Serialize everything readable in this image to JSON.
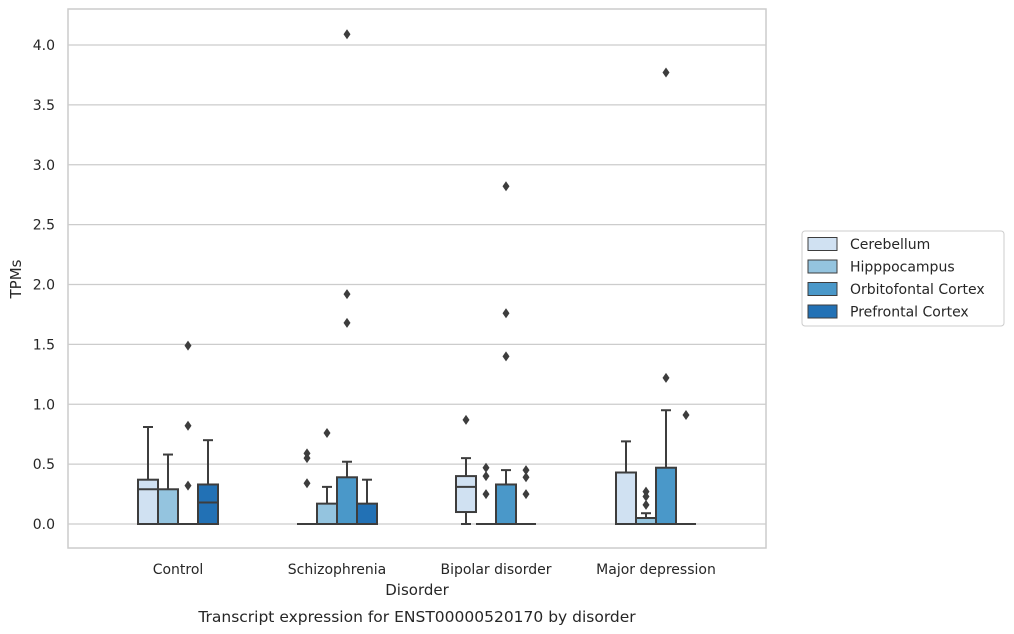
{
  "chart_data": {
    "type": "box",
    "title": "",
    "caption": "Transcript expression for ENST00000520170 by disorder",
    "xlabel": "Disorder",
    "ylabel": "TPMs",
    "ylim": [
      -0.2,
      4.3
    ],
    "yticks": [
      "0.0",
      "0.5",
      "1.0",
      "1.5",
      "2.0",
      "2.5",
      "3.0",
      "3.5",
      "4.0"
    ],
    "grid": true,
    "legend_placement": "right",
    "categories": [
      "Control",
      "Schizophrenia",
      "Bipolar disorder",
      "Major depression"
    ],
    "series": [
      {
        "name": "Cerebellum",
        "color": "#d0e1f2",
        "boxes": [
          {
            "q1": 0.0,
            "median": 0.29,
            "q3": 0.37,
            "whisker_low": 0.0,
            "whisker_high": 0.81,
            "outliers": []
          },
          {
            "q1": 0.0,
            "median": 0.0,
            "q3": 0.0,
            "whisker_low": 0.0,
            "whisker_high": 0.0,
            "outliers": [
              0.59,
              0.55,
              0.34
            ]
          },
          {
            "q1": 0.1,
            "median": 0.31,
            "q3": 0.4,
            "whisker_low": 0.0,
            "whisker_high": 0.55,
            "outliers": [
              0.87
            ]
          },
          {
            "q1": 0.0,
            "median": 0.0,
            "q3": 0.43,
            "whisker_low": 0.0,
            "whisker_high": 0.69,
            "outliers": []
          }
        ]
      },
      {
        "name": "Hipppocampus",
        "color": "#94c4df",
        "boxes": [
          {
            "q1": 0.0,
            "median": 0.0,
            "q3": 0.29,
            "whisker_low": 0.0,
            "whisker_high": 0.58,
            "outliers": []
          },
          {
            "q1": 0.0,
            "median": 0.0,
            "q3": 0.17,
            "whisker_low": 0.0,
            "whisker_high": 0.31,
            "outliers": [
              0.76
            ]
          },
          {
            "q1": 0.0,
            "median": 0.0,
            "q3": 0.0,
            "whisker_low": 0.0,
            "whisker_high": 0.0,
            "outliers": [
              0.47,
              0.4,
              0.25
            ]
          },
          {
            "q1": 0.0,
            "median": 0.0,
            "q3": 0.05,
            "whisker_low": 0.0,
            "whisker_high": 0.09,
            "outliers": [
              0.27,
              0.23,
              0.16
            ]
          }
        ]
      },
      {
        "name": "Orbitofontal Cortex",
        "color": "#4a98c9",
        "boxes": [
          {
            "q1": 0.0,
            "median": 0.0,
            "q3": 0.0,
            "whisker_low": 0.0,
            "whisker_high": 0.0,
            "outliers": [
              1.49,
              0.82,
              0.32
            ]
          },
          {
            "q1": 0.0,
            "median": 0.0,
            "q3": 0.39,
            "whisker_low": 0.0,
            "whisker_high": 0.52,
            "outliers": [
              4.09,
              1.92,
              1.68
            ]
          },
          {
            "q1": 0.0,
            "median": 0.0,
            "q3": 0.33,
            "whisker_low": 0.0,
            "whisker_high": 0.45,
            "outliers": [
              2.82,
              1.76,
              1.4
            ]
          },
          {
            "q1": 0.0,
            "median": 0.0,
            "q3": 0.47,
            "whisker_low": 0.0,
            "whisker_high": 0.95,
            "outliers": [
              3.77,
              1.22
            ]
          }
        ]
      },
      {
        "name": "Prefrontal Cortex",
        "color": "#2271b5",
        "boxes": [
          {
            "q1": 0.0,
            "median": 0.18,
            "q3": 0.33,
            "whisker_low": 0.0,
            "whisker_high": 0.7,
            "outliers": []
          },
          {
            "q1": 0.0,
            "median": 0.0,
            "q3": 0.17,
            "whisker_low": 0.0,
            "whisker_high": 0.37,
            "outliers": []
          },
          {
            "q1": 0.0,
            "median": 0.0,
            "q3": 0.0,
            "whisker_low": 0.0,
            "whisker_high": 0.0,
            "outliers": [
              0.45,
              0.39,
              0.25
            ]
          },
          {
            "q1": 0.0,
            "median": 0.0,
            "q3": 0.0,
            "whisker_low": 0.0,
            "whisker_high": 0.0,
            "outliers": [
              0.91
            ]
          }
        ]
      }
    ]
  }
}
